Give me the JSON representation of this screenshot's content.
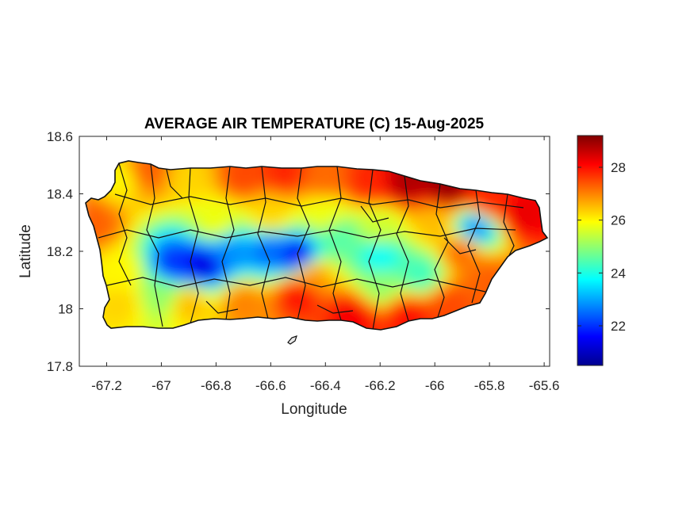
{
  "chart_data": {
    "type": "heatmap",
    "title": "AVERAGE AIR TEMPERATURE (C) 15-Aug-2025",
    "xlabel": "Longitude",
    "ylabel": "Latitude",
    "xlim": [
      -67.3,
      -65.58
    ],
    "ylim": [
      17.8,
      18.6
    ],
    "x_ticks": [
      -67.2,
      -67,
      -66.8,
      -66.6,
      -66.4,
      -66.2,
      -66,
      -65.8,
      -65.6
    ],
    "x_tick_labels": [
      "-67.2",
      "-67",
      "-66.8",
      "-66.6",
      "-66.4",
      "-66.2",
      "-66",
      "-65.8",
      "-65.6"
    ],
    "y_ticks": [
      17.8,
      18,
      18.2,
      18.4,
      18.6
    ],
    "y_tick_labels": [
      "17.8",
      "18",
      "18.2",
      "18.4",
      "18.6"
    ],
    "colorbar": {
      "colormap": "jet",
      "clim": [
        20.5,
        29.2
      ],
      "ticks": [
        22,
        24,
        26,
        28
      ],
      "tick_labels": [
        "22",
        "24",
        "26",
        "28"
      ]
    },
    "grid": false,
    "field_samples": [
      {
        "lon": -67.15,
        "lat": 18.45,
        "value": 26.0
      },
      {
        "lon": -67.05,
        "lat": 18.48,
        "value": 27.3
      },
      {
        "lon": -66.9,
        "lat": 18.45,
        "value": 26.3
      },
      {
        "lon": -66.7,
        "lat": 18.46,
        "value": 27.5
      },
      {
        "lon": -66.55,
        "lat": 18.47,
        "value": 27.8
      },
      {
        "lon": -66.4,
        "lat": 18.45,
        "value": 27.2
      },
      {
        "lon": -66.25,
        "lat": 18.44,
        "value": 27.8
      },
      {
        "lon": -66.1,
        "lat": 18.44,
        "value": 28.8
      },
      {
        "lon": -65.95,
        "lat": 18.42,
        "value": 29.0
      },
      {
        "lon": -65.8,
        "lat": 18.37,
        "value": 27.8
      },
      {
        "lon": -65.68,
        "lat": 18.33,
        "value": 28.3
      },
      {
        "lon": -67.25,
        "lat": 18.3,
        "value": 27.3
      },
      {
        "lon": -67.15,
        "lat": 18.12,
        "value": 26.0
      },
      {
        "lon": -67.15,
        "lat": 18.02,
        "value": 26.3
      },
      {
        "lon": -66.95,
        "lat": 18.15,
        "value": 22.0
      },
      {
        "lon": -66.85,
        "lat": 18.15,
        "value": 21.3
      },
      {
        "lon": -66.75,
        "lat": 18.2,
        "value": 22.8
      },
      {
        "lon": -66.6,
        "lat": 18.2,
        "value": 22.5
      },
      {
        "lon": -66.5,
        "lat": 18.18,
        "value": 21.5
      },
      {
        "lon": -66.35,
        "lat": 18.25,
        "value": 24.5
      },
      {
        "lon": -66.2,
        "lat": 18.18,
        "value": 23.8
      },
      {
        "lon": -66.05,
        "lat": 18.12,
        "value": 24.3
      },
      {
        "lon": -65.85,
        "lat": 18.28,
        "value": 22.8
      },
      {
        "lon": -66.0,
        "lat": 18.3,
        "value": 26.5
      },
      {
        "lon": -65.9,
        "lat": 18.2,
        "value": 27.2
      },
      {
        "lon": -66.8,
        "lat": 18.3,
        "value": 25.8
      },
      {
        "lon": -66.6,
        "lat": 18.33,
        "value": 26.3
      },
      {
        "lon": -66.4,
        "lat": 18.33,
        "value": 25.8
      },
      {
        "lon": -66.2,
        "lat": 18.28,
        "value": 25.5
      },
      {
        "lon": -67.0,
        "lat": 18.05,
        "value": 25.0
      },
      {
        "lon": -66.9,
        "lat": 18.02,
        "value": 26.5
      },
      {
        "lon": -66.7,
        "lat": 18.02,
        "value": 27.0
      },
      {
        "lon": -66.5,
        "lat": 18.05,
        "value": 28.0
      },
      {
        "lon": -66.3,
        "lat": 17.98,
        "value": 28.2
      },
      {
        "lon": -66.1,
        "lat": 17.98,
        "value": 28.0
      },
      {
        "lon": -65.95,
        "lat": 18.02,
        "value": 27.5
      },
      {
        "lon": -65.8,
        "lat": 18.1,
        "value": 27.3
      },
      {
        "lon": -66.2,
        "lat": 18.08,
        "value": 25.0
      },
      {
        "lon": -66.45,
        "lat": 18.12,
        "value": 26.8
      }
    ]
  }
}
